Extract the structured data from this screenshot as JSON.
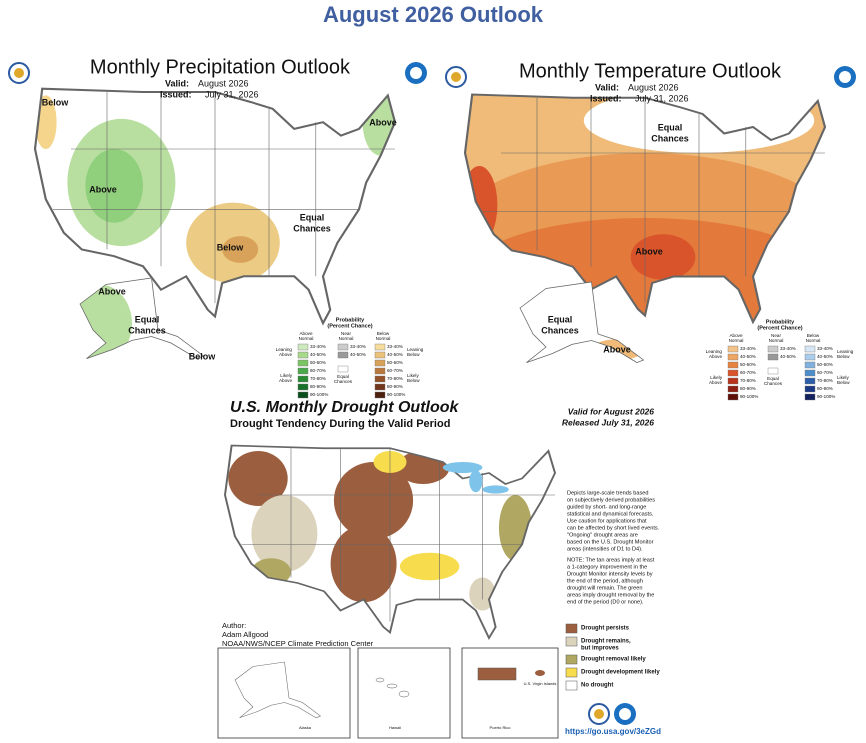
{
  "title": "August 2026 Outlook",
  "precipitation": {
    "title": "Monthly Precipitation Outlook",
    "valid_label": "Valid:",
    "valid": "August 2026",
    "issued_label": "Issued:",
    "issued": "July 31, 2026",
    "labels": [
      {
        "lines": [
          "Below"
        ]
      },
      {
        "lines": [
          "Above"
        ]
      },
      {
        "lines": [
          "Above"
        ]
      },
      {
        "lines": [
          "Below"
        ]
      },
      {
        "lines": [
          "Equal",
          "Chances"
        ]
      },
      {
        "lines": [
          "Above"
        ]
      },
      {
        "lines": [
          "Equal",
          "Chances"
        ]
      },
      {
        "lines": [
          "Below"
        ]
      }
    ],
    "legend": {
      "heading": [
        "Probability",
        "(Percent Chance)"
      ],
      "columns": [
        {
          "name": [
            "Above",
            "Normal"
          ],
          "colors": [
            "#cfe9bf",
            "#a9d98d",
            "#7cc465",
            "#4aa84a",
            "#2a8a33",
            "#17702a",
            "#0b4f1c"
          ]
        },
        {
          "name": [
            "Near",
            "Normal"
          ],
          "colors": [
            "#cccccc",
            "#999999"
          ]
        },
        {
          "name": [
            "Below",
            "Normal"
          ],
          "colors": [
            "#f6dd9c",
            "#ecc27a",
            "#d9a25a",
            "#b9783c",
            "#945228",
            "#72361a",
            "#4d200f"
          ]
        }
      ],
      "ranges": [
        "33-40%",
        "40-50%",
        "50-60%",
        "60-70%",
        "70-80%",
        "80-90%",
        "90-100%"
      ],
      "equal": [
        "Equal",
        "Chances"
      ],
      "left": [
        [
          "Leaning",
          "Above"
        ],
        [
          "Likely",
          "Above"
        ]
      ],
      "right": [
        [
          "Leaning",
          "Below"
        ],
        [
          "Likely",
          "Below"
        ]
      ]
    }
  },
  "temperature": {
    "title": "Monthly Temperature Outlook",
    "valid_label": "Valid:",
    "valid": "August 2026",
    "issued_label": "Issued:",
    "issued": "July 31, 2026",
    "labels": [
      {
        "lines": [
          "Equal",
          "Chances"
        ]
      },
      {
        "lines": [
          "Above"
        ]
      },
      {
        "lines": [
          "Equal",
          "Chances"
        ]
      },
      {
        "lines": [
          "Above"
        ]
      }
    ],
    "legend": {
      "heading": [
        "Probability",
        "(Percent Chance)"
      ],
      "columns": [
        {
          "name": [
            "Above",
            "Normal"
          ],
          "colors": [
            "#f3c48a",
            "#eea463",
            "#e6823f",
            "#d9542a",
            "#b8321c",
            "#8e1f12",
            "#5e0f08"
          ]
        },
        {
          "name": [
            "Near",
            "Normal"
          ],
          "colors": [
            "#cccccc",
            "#999999"
          ]
        },
        {
          "name": [
            "Below",
            "Normal"
          ],
          "colors": [
            "#d6e6f5",
            "#aacdeb",
            "#7fb1dc",
            "#4e8ec8",
            "#2d5fa8",
            "#1d3a85",
            "#12205c"
          ]
        }
      ],
      "ranges": [
        "33-40%",
        "40-50%",
        "50-60%",
        "60-70%",
        "70-80%",
        "80-90%",
        "90-100%"
      ],
      "equal": [
        "Equal",
        "Chances"
      ],
      "left": [
        [
          "Leaning",
          "Above"
        ],
        [
          "Likely",
          "Above"
        ]
      ],
      "right": [
        [
          "Leaning",
          "Below"
        ],
        [
          "Likely",
          "Below"
        ]
      ]
    }
  },
  "drought": {
    "title": "U.S. Monthly Drought Outlook",
    "subtitle": "Drought Tendency During the Valid Period",
    "valid": "Valid for August 2026",
    "released": "Released July 31, 2026",
    "description": [
      "Depicts large-scale trends based",
      "on subjectively derived probabilities",
      "guided by short- and long-range",
      "statistical and dynamical forecasts.",
      "Use caution for applications that",
      "can be affected by short lived events.",
      "\"Ongoing\" drought areas are",
      "based on the U.S. Drought Monitor",
      "areas (intensities of D1 to D4)."
    ],
    "note": [
      "NOTE: The tan areas imply at least",
      "a 1-category improvement in the",
      "Drought Monitor intensity levels by",
      "the end of the period, although",
      "drought will remain. The green",
      "areas imply drought removal by the",
      "end of the period (D0 or none)."
    ],
    "legend": [
      {
        "lines": [
          "Drought persists"
        ],
        "color": "#9b5e3f"
      },
      {
        "lines": [
          "Drought remains,",
          "but improves"
        ],
        "color": "#dcd3bd"
      },
      {
        "lines": [
          "Drought removal likely"
        ],
        "color": "#b0a862"
      },
      {
        "lines": [
          "Drought development likely"
        ],
        "color": "#f7dc4d"
      },
      {
        "lines": [
          "No drought"
        ],
        "color": "#ffffff"
      }
    ],
    "author_label": "Author:",
    "author": "Adam Allgood",
    "agency": "NOAA/NWS/NCEP Climate Prediction Center",
    "insets": [
      "Alaska",
      "Hawaii",
      "Puerto Rico",
      "U.S. Virgin Islands"
    ],
    "link": "https://go.usa.gov/3eZGd"
  }
}
